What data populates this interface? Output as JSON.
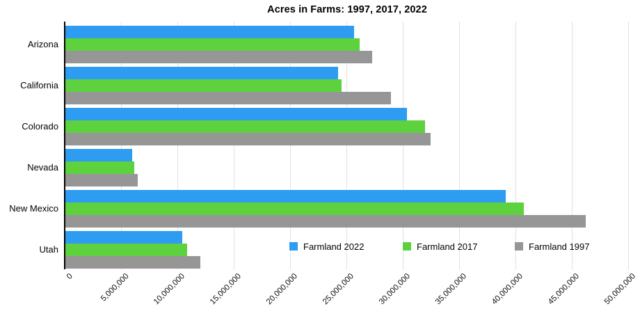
{
  "chart_data": {
    "type": "bar",
    "orientation": "horizontal",
    "title": "Acres in Farms: 1997, 2017, 2022",
    "xlabel": "",
    "ylabel": "",
    "categories": [
      "Arizona",
      "California",
      "Colorado",
      "Nevada",
      "New Mexico",
      "Utah"
    ],
    "series": [
      {
        "name": "Farmland 2022",
        "color": "#2e9cf1",
        "values": [
          25600000,
          24200000,
          30300000,
          5900000,
          39100000,
          10400000
        ]
      },
      {
        "name": "Farmland 2017",
        "color": "#5dd23e",
        "values": [
          26100000,
          24500000,
          31900000,
          6100000,
          40700000,
          10800000
        ]
      },
      {
        "name": "Farmland 1997",
        "color": "#969696",
        "values": [
          27200000,
          28900000,
          32400000,
          6400000,
          46200000,
          12000000
        ]
      }
    ],
    "xlim": [
      0,
      50000000
    ],
    "x_tick_interval": 5000000,
    "x_tick_labels": [
      "0",
      "5,000,000",
      "10,000,000",
      "15,000,000",
      "20,000,000",
      "25,000,000",
      "30,000,000",
      "35,000,000",
      "40,000,000",
      "45,000,000",
      "50,000,000"
    ],
    "grid": true,
    "legend_position": "inside-bottom-right",
    "colors": {
      "background": "#ffffff",
      "gridline": "#e1e1e1",
      "axis": "#000000",
      "text": "#000000"
    }
  }
}
